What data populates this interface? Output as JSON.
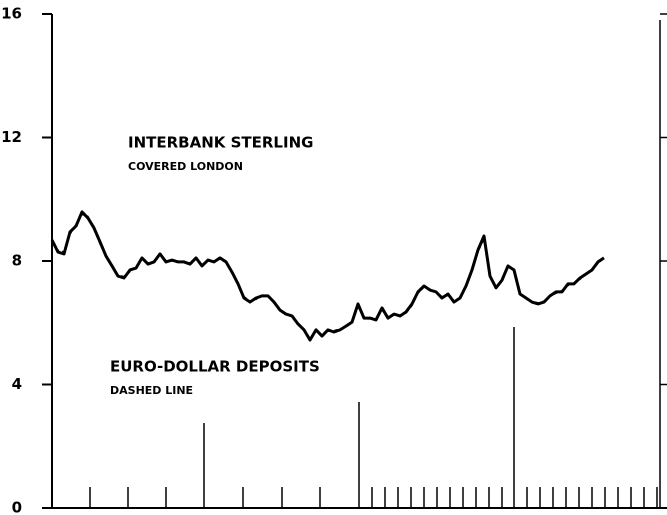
{
  "chart_data": {
    "type": "line",
    "annotations": [
      "INTERBANK STERLING",
      "COVERED LONDON",
      "EURO-DOLLAR DEPOSITS",
      "DASHED LINE"
    ],
    "categories": [
      null,
      null,
      null,
      null,
      null,
      null,
      null,
      null,
      null,
      null,
      null,
      null,
      null,
      null,
      null,
      null,
      null,
      null,
      null,
      null,
      null,
      null,
      null,
      null,
      null,
      null,
      null,
      null,
      null,
      null,
      null,
      null,
      null,
      null,
      null,
      null,
      null,
      null,
      null,
      null,
      null,
      null,
      null,
      null,
      null,
      null,
      null,
      null,
      null,
      null,
      null,
      null,
      null,
      null,
      null,
      null,
      null,
      null,
      null,
      null,
      null,
      null,
      null,
      null,
      null,
      null,
      null,
      null,
      null,
      null,
      null,
      null,
      null,
      null,
      null,
      null,
      null,
      null,
      null,
      null,
      null,
      null,
      null,
      null,
      null,
      null,
      null,
      null,
      null,
      null,
      null,
      null,
      null
    ],
    "series": [
      {
        "name": "INTERBANK STERLING COVERED LONDON",
        "color": "#000000",
        "style": "solid",
        "values": [
          8.68,
          8.29,
          8.23,
          8.94,
          9.13,
          9.59,
          9.39,
          9.07,
          8.62,
          8.16,
          7.84,
          7.51,
          7.45,
          7.71,
          7.77,
          8.1,
          7.9,
          7.97,
          8.23,
          7.97,
          8.03,
          7.97,
          7.97,
          7.9,
          8.1,
          7.84,
          8.03,
          7.97,
          8.1,
          7.97,
          7.64,
          7.26,
          6.8,
          6.67,
          6.8,
          6.87,
          6.87,
          6.67,
          6.41,
          6.28,
          6.22,
          5.96,
          5.77,
          5.44,
          5.77,
          5.57,
          5.77,
          5.7,
          5.77,
          5.89,
          6.02,
          6.61,
          6.15,
          6.15,
          6.09,
          6.48,
          6.15,
          6.28,
          6.22,
          6.35,
          6.61,
          7.0,
          7.19,
          7.06,
          7.0,
          6.8,
          6.93,
          6.67,
          6.8,
          7.19,
          7.71,
          8.36,
          8.81,
          7.51,
          7.13,
          7.38,
          7.84,
          7.71,
          6.93,
          6.8,
          6.67,
          6.61,
          6.67,
          6.87,
          7.0,
          7.0,
          7.26,
          7.26,
          7.45,
          7.58,
          7.71,
          7.97,
          8.1
        ]
      },
      {
        "name": "EURO-DOLLAR DEPOSITS DASHED LINE",
        "color": "#000000",
        "style": "dashed",
        "values": [
          8.6,
          8.35,
          8.3,
          8.85,
          9.2,
          9.5,
          9.45,
          9.0,
          8.55,
          8.2,
          7.8,
          7.55,
          7.5,
          7.65,
          7.8,
          8.05,
          7.95,
          7.95,
          8.2,
          8.0,
          8.0,
          8.0,
          7.95,
          7.95,
          8.05,
          7.9,
          8.0,
          8.0,
          8.05,
          7.95,
          7.6,
          7.3,
          6.85,
          6.7,
          6.75,
          6.9,
          6.85,
          6.7,
          6.45,
          6.3,
          6.2,
          6.0,
          5.8,
          5.5,
          5.75,
          5.6,
          5.75,
          5.75,
          5.8,
          5.9,
          6.05,
          6.5,
          6.2,
          6.1,
          6.1,
          6.4,
          6.2,
          6.25,
          6.25,
          6.3,
          6.55,
          6.95,
          7.15,
          7.05,
          7.0,
          6.85,
          6.9,
          6.7,
          6.8,
          7.15,
          7.65,
          8.3,
          8.7,
          7.55,
          7.15,
          7.35,
          7.8,
          7.7,
          6.95,
          6.8,
          6.7,
          6.65,
          6.7,
          6.85,
          6.95,
          7.05,
          7.2,
          7.3,
          7.4,
          7.6,
          7.7,
          7.95,
          8.05
        ]
      }
    ],
    "ylim": [
      0,
      16
    ],
    "yticks": [
      0,
      4,
      8,
      12,
      16
    ]
  }
}
